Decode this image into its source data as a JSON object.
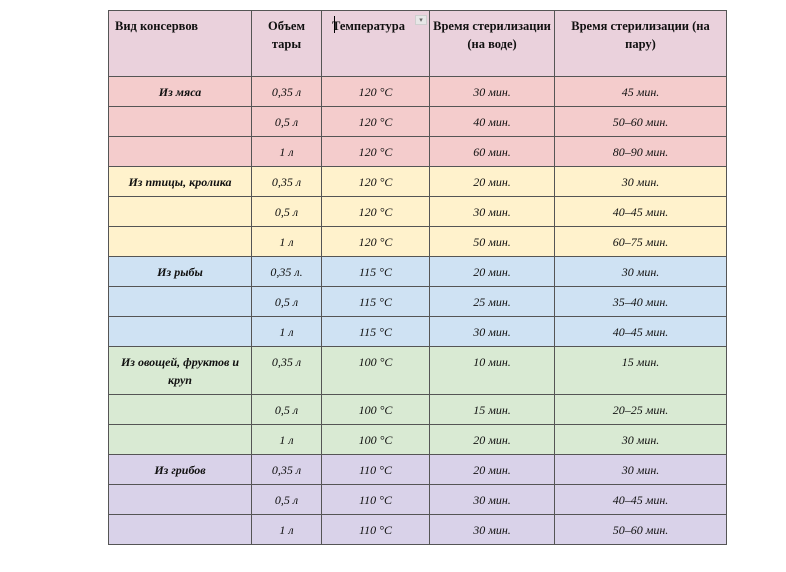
{
  "headers": [
    "Вид консервов",
    "Объем тары",
    "Температура",
    "Время стерилизации (на воде)",
    "Время стерилизации (на пару)"
  ],
  "groups": [
    {
      "name": "Из мяса",
      "color": "#f4cccc",
      "rows": [
        {
          "volume": "0,35 л",
          "temp": "120 °C",
          "water": "30 мин.",
          "steam": "45 мин."
        },
        {
          "volume": "0,5 л",
          "temp": "120 °C",
          "water": "40 мин.",
          "steam": "50–60 мин."
        },
        {
          "volume": "1 л",
          "temp": "120 °C",
          "water": "60 мин.",
          "steam": "80–90 мин."
        }
      ]
    },
    {
      "name": "Из птицы, кролика",
      "color": "#fff2cc",
      "rows": [
        {
          "volume": "0,35 л",
          "temp": "120 °C",
          "water": "20 мин.",
          "steam": "30 мин."
        },
        {
          "volume": "0,5 л",
          "temp": "120 °C",
          "water": "30 мин.",
          "steam": "40–45 мин."
        },
        {
          "volume": "1 л",
          "temp": "120 °C",
          "water": "50 мин.",
          "steam": "60–75 мин."
        }
      ]
    },
    {
      "name": "Из рыбы",
      "color": "#cfe2f3",
      "rows": [
        {
          "volume": "0,35 л.",
          "temp": "115 °C",
          "water": "20 мин.",
          "steam": "30 мин."
        },
        {
          "volume": "0,5 л",
          "temp": "115 °C",
          "water": "25 мин.",
          "steam": "35–40 мин."
        },
        {
          "volume": "1 л",
          "temp": "115 °C",
          "water": "30 мин.",
          "steam": "40–45 мин."
        }
      ]
    },
    {
      "name": "Из овощей, фруктов и круп",
      "color": "#d9ead3",
      "rows": [
        {
          "volume": "0,35 л",
          "temp": "100 °C",
          "water": "10 мин.",
          "steam": "15 мин."
        },
        {
          "volume": "0,5 л",
          "temp": "100 °C",
          "water": "15 мин.",
          "steam": "20–25 мин."
        },
        {
          "volume": "1 л",
          "temp": "100 °C",
          "water": "20 мин.",
          "steam": "30 мин."
        }
      ]
    },
    {
      "name": "Из грибов",
      "color": "#d9d2e9",
      "rows": [
        {
          "volume": "0,35 л",
          "temp": "110 °C",
          "water": "20 мин.",
          "steam": "30 мин."
        },
        {
          "volume": "0,5 л",
          "temp": "110 °C",
          "water": "30 мин.",
          "steam": "40–45 мин."
        },
        {
          "volume": "1 л",
          "temp": "110 °C",
          "water": "30 мин.",
          "steam": "50–60 мин."
        }
      ]
    }
  ]
}
